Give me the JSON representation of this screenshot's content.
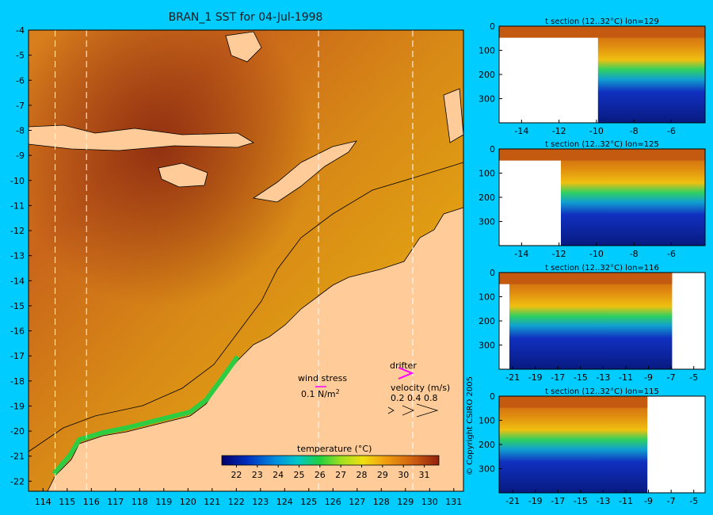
{
  "chart_data": [
    {
      "type": "heatmap",
      "title": "BRAN_1 SST for 04-Jul-1998",
      "x_ticks": [
        "114",
        "115",
        "116",
        "117",
        "118",
        "119",
        "120",
        "121",
        "122",
        "123",
        "124",
        "125",
        "126",
        "127",
        "128",
        "129",
        "130",
        "131"
      ],
      "y_ticks": [
        "-4",
        "-5",
        "-6",
        "-7",
        "-8",
        "-9",
        "-10",
        "-11",
        "-12",
        "-13",
        "-14",
        "-15",
        "-16",
        "-17",
        "-18",
        "-19",
        "-20",
        "-21",
        "-22"
      ],
      "xlim": [
        113.4,
        131.4
      ],
      "ylim": [
        -22.4,
        -4
      ],
      "section_lines_lon": [
        114.5,
        115.8,
        125.4,
        129.3
      ],
      "colorbar": {
        "label": "temperature (°C)",
        "ticks": [
          "22",
          "23",
          "24",
          "25",
          "26",
          "27",
          "28",
          "29",
          "30",
          "31"
        ],
        "range": [
          21.3,
          31.7
        ]
      },
      "legend": {
        "wind_stress_label": "wind stress",
        "wind_stress_scale": "0.1 N/m",
        "wind_stress_exponent": "2",
        "drifter_label": "drifter",
        "velocity_label": "velocity (m/s)",
        "velocity_scale": "0.2 0.4 0.8"
      }
    },
    {
      "type": "heatmap",
      "title": "t section (12..32°C) lon=129",
      "x_ticks": [
        "-14",
        "-12",
        "-10",
        "-8",
        "-6"
      ],
      "y_ticks": [
        "0",
        "100",
        "200",
        "300"
      ],
      "xlim": [
        -15.2,
        -4.2
      ],
      "ylim": [
        400,
        0
      ]
    },
    {
      "type": "heatmap",
      "title": "t section (12..32°C) lon=125",
      "x_ticks": [
        "-14",
        "-12",
        "-10",
        "-8",
        "-6"
      ],
      "y_ticks": [
        "0",
        "100",
        "200",
        "300"
      ],
      "xlim": [
        -15.2,
        -4.2
      ],
      "ylim": [
        400,
        0
      ]
    },
    {
      "type": "heatmap",
      "title": "t section (12..32°C) lon=116",
      "x_ticks": [
        "-21",
        "-19",
        "-17",
        "-15",
        "-13",
        "-11",
        "-9",
        "-7",
        "-5"
      ],
      "y_ticks": [
        "0",
        "100",
        "200",
        "300"
      ],
      "xlim": [
        -22.2,
        -4
      ],
      "ylim": [
        400,
        0
      ]
    },
    {
      "type": "heatmap",
      "title": "t section (12..32°C) lon=115",
      "x_ticks": [
        "-21",
        "-19",
        "-17",
        "-15",
        "-13",
        "-11",
        "-9",
        "-7",
        "-5"
      ],
      "y_ticks": [
        "0",
        "100",
        "200",
        "300"
      ],
      "xlim": [
        -22.2,
        -4
      ],
      "ylim": [
        400,
        0
      ]
    }
  ],
  "copyright": "© Copyright CSIRO 2005",
  "colors": {
    "background": "#00ccff",
    "land": "#ffcc99",
    "warm": "#8b2a10",
    "mid": "#e08a10",
    "cool_green": "#2ecc40",
    "deep_blue": "#0a1a8a"
  }
}
